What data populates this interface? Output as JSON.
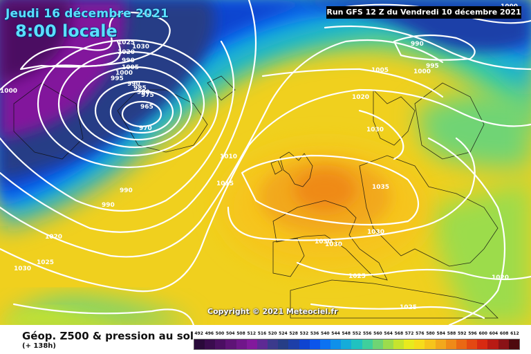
{
  "header": {
    "date": "Jeudi 16 décembre 2021",
    "time": "8:00 locale",
    "run": "Run GFS 12 Z du Vendredi 10 décembre 2021"
  },
  "copyright": "Copyright © 2021 Meteociel.fr",
  "footer": {
    "product": "Géop. Z500 & pression au sol",
    "lead": "(+ 138h)"
  },
  "legend": {
    "ticks": [
      "492",
      "496",
      "500",
      "504",
      "508",
      "512",
      "516",
      "520",
      "524",
      "528",
      "532",
      "536",
      "540",
      "544",
      "548",
      "552",
      "556",
      "560",
      "564",
      "568",
      "572",
      "576",
      "580",
      "584",
      "588",
      "592",
      "596",
      "600",
      "604",
      "608",
      "612"
    ],
    "colors": [
      "#2a0a3a",
      "#3a0c4e",
      "#4b0f62",
      "#5e1376",
      "#70168a",
      "#82199c",
      "#5e2a94",
      "#3b3a8c",
      "#263e86",
      "#1d3fa8",
      "#0f44d0",
      "#0b55ea",
      "#0c72f2",
      "#0f90ea",
      "#15acd9",
      "#20c2c0",
      "#3fcf9c",
      "#6fd474",
      "#9cdc4c",
      "#c6e42e",
      "#e8ea1e",
      "#f6dc1c",
      "#f6c41c",
      "#f2a81c",
      "#ef8a18",
      "#ea6814",
      "#e44812",
      "#d82a12",
      "#b81a14",
      "#8a1216",
      "#4e0a0e"
    ],
    "colors_named": "map fill palette, dark purple to red"
  },
  "pressure_labels": [
    "1025",
    "1030",
    "1020",
    "1005",
    "1000",
    "995",
    "990",
    "985",
    "980",
    "975",
    "965",
    "970",
    "1000",
    "990",
    "990",
    "1010",
    "1015",
    "1020",
    "1030",
    "1005",
    "1000",
    "995",
    "990",
    "1000",
    "1035",
    "1030",
    "1030",
    "1030",
    "1025",
    "1025",
    "1025",
    "1020",
    "1030",
    "1025",
    "1020",
    "990"
  ]
}
